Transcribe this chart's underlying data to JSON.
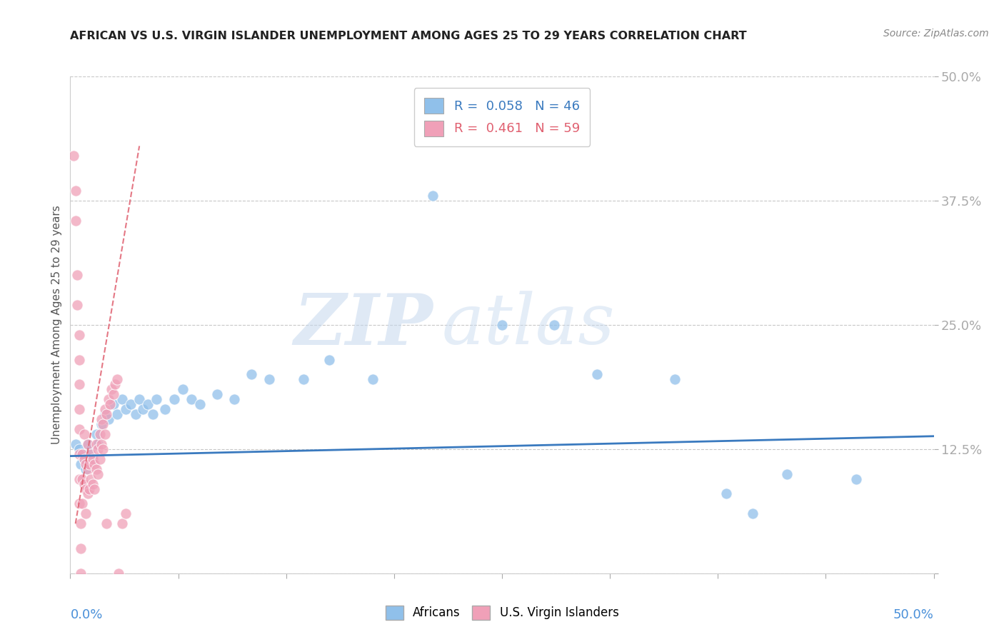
{
  "title": "AFRICAN VS U.S. VIRGIN ISLANDER UNEMPLOYMENT AMONG AGES 25 TO 29 YEARS CORRELATION CHART",
  "source": "Source: ZipAtlas.com",
  "ylabel": "Unemployment Among Ages 25 to 29 years",
  "xlim": [
    0.0,
    0.5
  ],
  "ylim": [
    0.0,
    0.5
  ],
  "yticks": [
    0.0,
    0.125,
    0.25,
    0.375,
    0.5
  ],
  "xticks": [
    0.0,
    0.0625,
    0.125,
    0.1875,
    0.25,
    0.3125,
    0.375,
    0.4375,
    0.5
  ],
  "yticklabels_right": [
    "",
    "12.5%",
    "25.0%",
    "37.5%",
    "50.0%"
  ],
  "grid_color": "#c8c8c8",
  "background_color": "#ffffff",
  "watermark_zip": "ZIP",
  "watermark_atlas": "atlas",
  "blue_color": "#90c0ea",
  "pink_color": "#f0a0b8",
  "blue_line_color": "#3a7abf",
  "pink_line_color": "#e06070",
  "blue_r": 0.058,
  "blue_n": 46,
  "pink_r": 0.461,
  "pink_n": 59,
  "africans_label": "Africans",
  "vi_label": "U.S. Virgin Islanders",
  "blue_scatter": [
    [
      0.003,
      0.13
    ],
    [
      0.005,
      0.125
    ],
    [
      0.006,
      0.11
    ],
    [
      0.007,
      0.12
    ],
    [
      0.008,
      0.115
    ],
    [
      0.009,
      0.105
    ],
    [
      0.01,
      0.13
    ],
    [
      0.012,
      0.125
    ],
    [
      0.013,
      0.115
    ],
    [
      0.015,
      0.14
    ],
    [
      0.016,
      0.13
    ],
    [
      0.018,
      0.15
    ],
    [
      0.02,
      0.16
    ],
    [
      0.022,
      0.155
    ],
    [
      0.025,
      0.17
    ],
    [
      0.027,
      0.16
    ],
    [
      0.03,
      0.175
    ],
    [
      0.032,
      0.165
    ],
    [
      0.035,
      0.17
    ],
    [
      0.038,
      0.16
    ],
    [
      0.04,
      0.175
    ],
    [
      0.042,
      0.165
    ],
    [
      0.045,
      0.17
    ],
    [
      0.048,
      0.16
    ],
    [
      0.05,
      0.175
    ],
    [
      0.055,
      0.165
    ],
    [
      0.06,
      0.175
    ],
    [
      0.065,
      0.185
    ],
    [
      0.07,
      0.175
    ],
    [
      0.075,
      0.17
    ],
    [
      0.085,
      0.18
    ],
    [
      0.095,
      0.175
    ],
    [
      0.105,
      0.2
    ],
    [
      0.115,
      0.195
    ],
    [
      0.135,
      0.195
    ],
    [
      0.15,
      0.215
    ],
    [
      0.175,
      0.195
    ],
    [
      0.21,
      0.38
    ],
    [
      0.25,
      0.25
    ],
    [
      0.28,
      0.25
    ],
    [
      0.305,
      0.2
    ],
    [
      0.35,
      0.195
    ],
    [
      0.38,
      0.08
    ],
    [
      0.395,
      0.06
    ],
    [
      0.415,
      0.1
    ],
    [
      0.455,
      0.095
    ]
  ],
  "pink_scatter": [
    [
      0.002,
      0.42
    ],
    [
      0.003,
      0.385
    ],
    [
      0.003,
      0.355
    ],
    [
      0.004,
      0.3
    ],
    [
      0.004,
      0.27
    ],
    [
      0.005,
      0.24
    ],
    [
      0.005,
      0.215
    ],
    [
      0.005,
      0.19
    ],
    [
      0.005,
      0.165
    ],
    [
      0.005,
      0.145
    ],
    [
      0.005,
      0.12
    ],
    [
      0.005,
      0.095
    ],
    [
      0.005,
      0.07
    ],
    [
      0.006,
      0.05
    ],
    [
      0.006,
      0.025
    ],
    [
      0.006,
      0.0
    ],
    [
      0.007,
      0.12
    ],
    [
      0.007,
      0.095
    ],
    [
      0.007,
      0.07
    ],
    [
      0.008,
      0.14
    ],
    [
      0.008,
      0.115
    ],
    [
      0.008,
      0.09
    ],
    [
      0.009,
      0.11
    ],
    [
      0.009,
      0.085
    ],
    [
      0.009,
      0.06
    ],
    [
      0.01,
      0.13
    ],
    [
      0.01,
      0.105
    ],
    [
      0.01,
      0.08
    ],
    [
      0.011,
      0.11
    ],
    [
      0.011,
      0.085
    ],
    [
      0.012,
      0.12
    ],
    [
      0.012,
      0.095
    ],
    [
      0.013,
      0.115
    ],
    [
      0.013,
      0.09
    ],
    [
      0.014,
      0.11
    ],
    [
      0.014,
      0.085
    ],
    [
      0.015,
      0.13
    ],
    [
      0.015,
      0.105
    ],
    [
      0.016,
      0.125
    ],
    [
      0.016,
      0.1
    ],
    [
      0.017,
      0.14
    ],
    [
      0.017,
      0.115
    ],
    [
      0.018,
      0.155
    ],
    [
      0.018,
      0.13
    ],
    [
      0.019,
      0.15
    ],
    [
      0.019,
      0.125
    ],
    [
      0.02,
      0.165
    ],
    [
      0.02,
      0.14
    ],
    [
      0.021,
      0.16
    ],
    [
      0.021,
      0.05
    ],
    [
      0.022,
      0.175
    ],
    [
      0.023,
      0.17
    ],
    [
      0.024,
      0.185
    ],
    [
      0.025,
      0.18
    ],
    [
      0.026,
      0.19
    ],
    [
      0.027,
      0.195
    ],
    [
      0.028,
      0.0
    ],
    [
      0.03,
      0.05
    ],
    [
      0.032,
      0.06
    ]
  ],
  "blue_trend_x": [
    0.0,
    0.5
  ],
  "blue_trend_y": [
    0.118,
    0.138
  ],
  "pink_trend_x": [
    0.003,
    0.04
  ],
  "pink_trend_y": [
    0.05,
    0.43
  ]
}
